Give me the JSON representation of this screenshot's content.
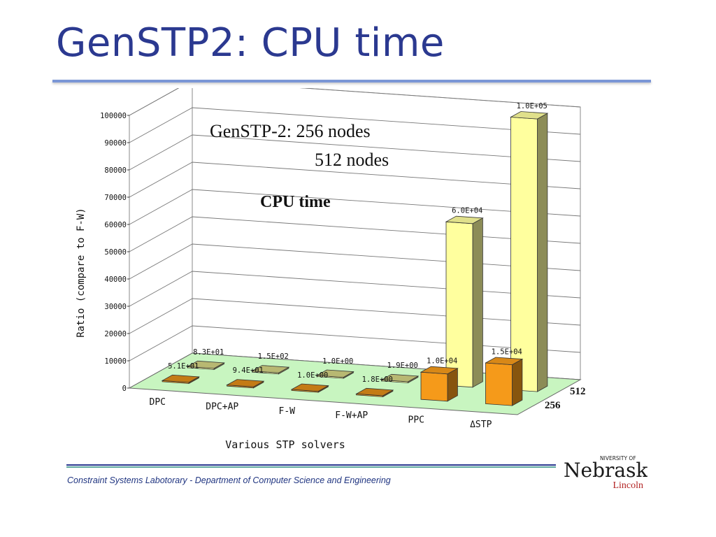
{
  "slide": {
    "title": "GenSTP2: CPU time",
    "footer": "Constraint Systems Labotorary - Department of Computer Science and Engineering"
  },
  "logo": {
    "top_text": "NIVERSITY OF",
    "main_text": "Nebraska",
    "sub_text": "Lincoln",
    "color": "#1a1a1a",
    "sub_color": "#b22222"
  },
  "chart_data": {
    "type": "bar",
    "annotations": [
      "GenSTP-2: 256 nodes",
      "512 nodes",
      "CPU time"
    ],
    "xlabel": "Various STP solvers",
    "ylabel": "Ratio (compare to F-W)",
    "ylim": [
      0,
      100000
    ],
    "yticks": [
      0,
      10000,
      20000,
      30000,
      40000,
      50000,
      60000,
      70000,
      80000,
      90000,
      100000
    ],
    "grid": true,
    "categories": [
      "DPC",
      "DPC+AP",
      "F-W",
      "F-W+AP",
      "PPC",
      "ΔSTP"
    ],
    "series": [
      {
        "name": "256",
        "color": "#f59a1a",
        "values": [
          51,
          94,
          1,
          1.8,
          10000,
          15000
        ],
        "labels": [
          "5.1E+01",
          "9.4E+01",
          "1.0E+00",
          "1.8E+00",
          "1.0E+04",
          "1.5E+04"
        ]
      },
      {
        "name": "512",
        "color": "#ffff9e",
        "values": [
          83,
          150,
          1,
          1.9,
          60000,
          100000
        ],
        "labels": [
          "8.3E+01",
          "1.5E+02",
          "1.0E+00",
          "1.9E+00",
          "6.0E+04",
          "1.0E+05"
        ]
      }
    ]
  }
}
